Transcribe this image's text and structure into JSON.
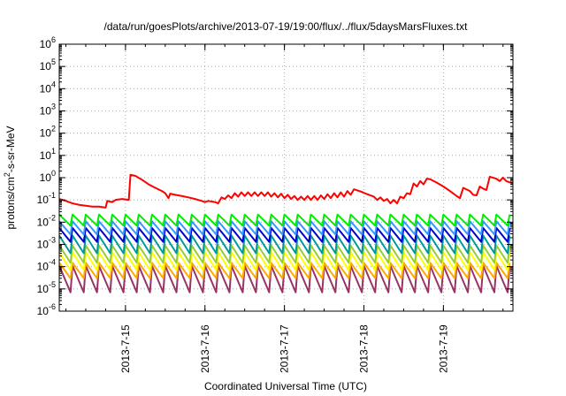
{
  "chart_data": {
    "type": "line",
    "title": "/data/run/goesPlots/archive/2013-07-19/19:00/flux/../flux/5daysMarsFluxes.txt",
    "xlabel": "Coordinated Universal Time (UTC)",
    "ylabel_base": "protons/cm",
    "ylabel_sup": "2",
    "ylabel_rest": "-s-sr-MeV",
    "y_scale": "log",
    "ylim_exp": [
      -6,
      6
    ],
    "xlim": [
      "2013-07-14 04:00",
      "2013-07-19 21:00"
    ],
    "x_ticks": [
      {
        "date": "2013-07-15 00:00",
        "label": "2013-7-15"
      },
      {
        "date": "2013-07-16 00:00",
        "label": "2013-7-16"
      },
      {
        "date": "2013-07-17 00:00",
        "label": "2013-7-17"
      },
      {
        "date": "2013-07-18 00:00",
        "label": "2013-7-18"
      },
      {
        "date": "2013-07-19 00:00",
        "label": "2013-7-19"
      }
    ],
    "grid": true,
    "series": [
      {
        "color": "#ff0000",
        "points": [
          [
            "2013-07-14 04:00",
            0.11
          ],
          [
            "2013-07-14 06:00",
            0.09
          ],
          [
            "2013-07-14 08:00",
            0.07
          ],
          [
            "2013-07-14 10:00",
            0.06
          ],
          [
            "2013-07-14 12:00",
            0.055
          ],
          [
            "2013-07-14 14:00",
            0.05
          ],
          [
            "2013-07-14 16:00",
            0.05
          ],
          [
            "2013-07-14 18:00",
            0.045
          ],
          [
            "2013-07-14 18:30",
            0.09
          ],
          [
            "2013-07-14 20:00",
            0.08
          ],
          [
            "2013-07-14 21:00",
            0.1
          ],
          [
            "2013-07-14 23:00",
            0.11
          ],
          [
            "2013-07-15 01:00",
            0.1
          ],
          [
            "2013-07-15 01:30",
            1.35
          ],
          [
            "2013-07-15 03:00",
            1.2
          ],
          [
            "2013-07-15 05:00",
            0.8
          ],
          [
            "2013-07-15 07:00",
            0.5
          ],
          [
            "2013-07-15 09:00",
            0.35
          ],
          [
            "2013-07-15 11:00",
            0.25
          ],
          [
            "2013-07-15 12:00",
            0.2
          ],
          [
            "2013-07-15 13:00",
            0.12
          ],
          [
            "2013-07-15 13:30",
            0.19
          ],
          [
            "2013-07-15 15:00",
            0.17
          ],
          [
            "2013-07-15 17:00",
            0.15
          ],
          [
            "2013-07-15 19:00",
            0.13
          ],
          [
            "2013-07-15 21:00",
            0.11
          ],
          [
            "2013-07-15 23:00",
            0.09
          ],
          [
            "2013-07-16 00:00",
            0.08
          ],
          [
            "2013-07-16 01:00",
            0.09
          ],
          [
            "2013-07-16 03:00",
            0.08
          ],
          [
            "2013-07-16 04:00",
            0.07
          ],
          [
            "2013-07-16 05:00",
            0.13
          ],
          [
            "2013-07-16 06:00",
            0.11
          ],
          [
            "2013-07-16 07:00",
            0.16
          ],
          [
            "2013-07-16 08:00",
            0.12
          ],
          [
            "2013-07-16 09:00",
            0.2
          ],
          [
            "2013-07-16 10:00",
            0.14
          ],
          [
            "2013-07-16 11:00",
            0.22
          ],
          [
            "2013-07-16 12:00",
            0.15
          ],
          [
            "2013-07-16 13:00",
            0.22
          ],
          [
            "2013-07-16 14:00",
            0.15
          ],
          [
            "2013-07-16 15:00",
            0.22
          ],
          [
            "2013-07-16 16:00",
            0.15
          ],
          [
            "2013-07-16 17:00",
            0.22
          ],
          [
            "2013-07-16 18:00",
            0.15
          ],
          [
            "2013-07-16 19:00",
            0.22
          ],
          [
            "2013-07-16 20:00",
            0.14
          ],
          [
            "2013-07-16 21:00",
            0.2
          ],
          [
            "2013-07-16 22:00",
            0.13
          ],
          [
            "2013-07-16 23:00",
            0.19
          ],
          [
            "2013-07-17 00:00",
            0.12
          ],
          [
            "2013-07-17 01:00",
            0.17
          ],
          [
            "2013-07-17 02:00",
            0.11
          ],
          [
            "2013-07-17 03:00",
            0.15
          ],
          [
            "2013-07-17 04:00",
            0.1
          ],
          [
            "2013-07-17 05:00",
            0.14
          ],
          [
            "2013-07-17 06:00",
            0.1
          ],
          [
            "2013-07-17 07:00",
            0.15
          ],
          [
            "2013-07-17 08:00",
            0.1
          ],
          [
            "2013-07-17 09:00",
            0.15
          ],
          [
            "2013-07-17 10:00",
            0.1
          ],
          [
            "2013-07-17 11:00",
            0.16
          ],
          [
            "2013-07-17 12:00",
            0.11
          ],
          [
            "2013-07-17 13:00",
            0.18
          ],
          [
            "2013-07-17 14:00",
            0.12
          ],
          [
            "2013-07-17 15:00",
            0.2
          ],
          [
            "2013-07-17 16:00",
            0.13
          ],
          [
            "2013-07-17 17:00",
            0.22
          ],
          [
            "2013-07-17 18:00",
            0.14
          ],
          [
            "2013-07-17 19:00",
            0.25
          ],
          [
            "2013-07-17 20:00",
            0.17
          ],
          [
            "2013-07-17 21:00",
            0.3
          ],
          [
            "2013-07-17 23:00",
            0.24
          ],
          [
            "2013-07-18 01:00",
            0.18
          ],
          [
            "2013-07-18 03:00",
            0.14
          ],
          [
            "2013-07-18 04:00",
            0.1
          ],
          [
            "2013-07-18 05:00",
            0.13
          ],
          [
            "2013-07-18 06:00",
            0.09
          ],
          [
            "2013-07-18 07:00",
            0.11
          ],
          [
            "2013-07-18 08:00",
            0.07
          ],
          [
            "2013-07-18 09:00",
            0.1
          ],
          [
            "2013-07-18 10:00",
            0.07
          ],
          [
            "2013-07-18 11:00",
            0.14
          ],
          [
            "2013-07-18 12:00",
            0.12
          ],
          [
            "2013-07-18 13:00",
            0.2
          ],
          [
            "2013-07-18 14:00",
            0.18
          ],
          [
            "2013-07-18 15:00",
            0.55
          ],
          [
            "2013-07-18 16:00",
            0.4
          ],
          [
            "2013-07-18 17:00",
            0.7
          ],
          [
            "2013-07-18 18:00",
            0.5
          ],
          [
            "2013-07-18 19:00",
            0.9
          ],
          [
            "2013-07-18 20:00",
            0.85
          ],
          [
            "2013-07-18 22:00",
            0.6
          ],
          [
            "2013-07-19 00:00",
            0.4
          ],
          [
            "2013-07-19 02:00",
            0.25
          ],
          [
            "2013-07-19 04:00",
            0.15
          ],
          [
            "2013-07-19 05:00",
            0.12
          ],
          [
            "2013-07-19 06:00",
            0.35
          ],
          [
            "2013-07-19 08:00",
            0.25
          ],
          [
            "2013-07-19 09:00",
            0.17
          ],
          [
            "2013-07-19 10:00",
            0.16
          ],
          [
            "2013-07-19 11:00",
            0.4
          ],
          [
            "2013-07-19 12:00",
            0.32
          ],
          [
            "2013-07-19 13:00",
            0.28
          ],
          [
            "2013-07-19 14:00",
            1.1
          ],
          [
            "2013-07-19 16:00",
            0.9
          ],
          [
            "2013-07-19 17:00",
            0.7
          ],
          [
            "2013-07-19 18:00",
            1.0
          ],
          [
            "2013-07-19 19:00",
            0.7
          ],
          [
            "2013-07-19 21:00",
            0.55
          ]
        ]
      }
    ],
    "oscillating_series": {
      "period_hours": 4,
      "start": "2013-07-14 04:00",
      "end": "2013-07-19 21:00",
      "bands": [
        {
          "color": "#00ee00",
          "peak": 0.022,
          "trough": 0.007
        },
        {
          "color": "#3399ff",
          "peak": 0.011,
          "trough": 0.0028
        },
        {
          "color": "#0000cc",
          "peak": 0.0055,
          "trough": 0.0013
        },
        {
          "color": "#009999",
          "peak": 0.0025,
          "trough": 0.0004
        },
        {
          "color": "#99cc33",
          "peak": 0.0009,
          "trough": 0.00015
        },
        {
          "color": "#ffff00",
          "peak": 0.00045,
          "trough": 7e-05
        },
        {
          "color": "#ffaa00",
          "peak": 0.00015,
          "trough": 3e-05
        },
        {
          "color": "#993366",
          "peak": 0.00011,
          "trough": 7e-06
        }
      ]
    }
  }
}
